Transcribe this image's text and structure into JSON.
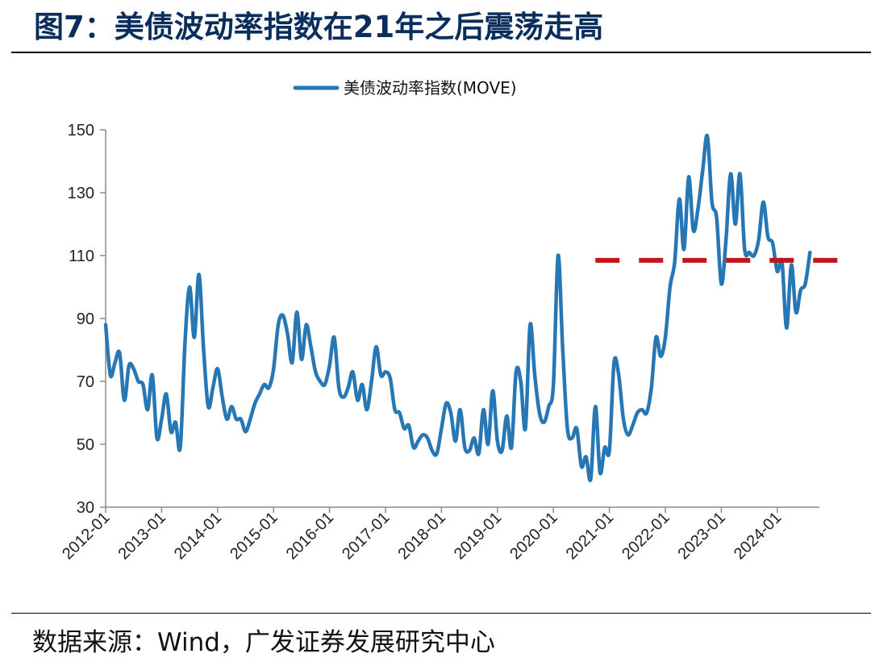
{
  "figure": {
    "title": "图7：美债波动率指数在21年之后震荡走高",
    "source": "数据来源：Wind，广发证券发展研究中心"
  },
  "chart_data": {
    "type": "line",
    "title": "",
    "xlabel": "",
    "ylabel": "",
    "ylim": [
      30,
      150
    ],
    "yticks": [
      30,
      50,
      70,
      90,
      110,
      130,
      150
    ],
    "xticks": [
      "2012-01",
      "2013-01",
      "2014-01",
      "2015-01",
      "2016-01",
      "2017-01",
      "2018-01",
      "2019-01",
      "2020-01",
      "2021-01",
      "2022-01",
      "2023-01",
      "2024-01"
    ],
    "legend_position": "top-center",
    "grid": false,
    "series": [
      {
        "name": "美债波动率指数(MOVE)",
        "color": "#2677b3",
        "points": [
          [
            "2012-01",
            88
          ],
          [
            "2012-02",
            72
          ],
          [
            "2012-03",
            76
          ],
          [
            "2012-04",
            79
          ],
          [
            "2012-05",
            64
          ],
          [
            "2012-06",
            75
          ],
          [
            "2012-07",
            74
          ],
          [
            "2012-08",
            70
          ],
          [
            "2012-09",
            69
          ],
          [
            "2012-10",
            61
          ],
          [
            "2012-11",
            72
          ],
          [
            "2012-12",
            52
          ],
          [
            "2013-01",
            58
          ],
          [
            "2013-02",
            66
          ],
          [
            "2013-03",
            54
          ],
          [
            "2013-04",
            57
          ],
          [
            "2013-05",
            49
          ],
          [
            "2013-06",
            82
          ],
          [
            "2013-07",
            100
          ],
          [
            "2013-08",
            84
          ],
          [
            "2013-09",
            104
          ],
          [
            "2013-10",
            80
          ],
          [
            "2013-11",
            62
          ],
          [
            "2013-12",
            68
          ],
          [
            "2014-01",
            74
          ],
          [
            "2014-02",
            65
          ],
          [
            "2014-03",
            58
          ],
          [
            "2014-04",
            62
          ],
          [
            "2014-05",
            58
          ],
          [
            "2014-06",
            58
          ],
          [
            "2014-07",
            54
          ],
          [
            "2014-08",
            58
          ],
          [
            "2014-09",
            63
          ],
          [
            "2014-10",
            66
          ],
          [
            "2014-11",
            69
          ],
          [
            "2014-12",
            68
          ],
          [
            "2015-01",
            74
          ],
          [
            "2015-02",
            88
          ],
          [
            "2015-03",
            91
          ],
          [
            "2015-04",
            85
          ],
          [
            "2015-05",
            76
          ],
          [
            "2015-06",
            92
          ],
          [
            "2015-07",
            77
          ],
          [
            "2015-08",
            88
          ],
          [
            "2015-09",
            81
          ],
          [
            "2015-10",
            73
          ],
          [
            "2015-11",
            70
          ],
          [
            "2015-12",
            69
          ],
          [
            "2016-01",
            75
          ],
          [
            "2016-02",
            84
          ],
          [
            "2016-03",
            68
          ],
          [
            "2016-04",
            65
          ],
          [
            "2016-05",
            68
          ],
          [
            "2016-06",
            73
          ],
          [
            "2016-07",
            64
          ],
          [
            "2016-08",
            69
          ],
          [
            "2016-09",
            61
          ],
          [
            "2016-10",
            70
          ],
          [
            "2016-11",
            81
          ],
          [
            "2016-12",
            72
          ],
          [
            "2017-01",
            73
          ],
          [
            "2017-02",
            71
          ],
          [
            "2017-03",
            61
          ],
          [
            "2017-04",
            60
          ],
          [
            "2017-05",
            55
          ],
          [
            "2017-06",
            56
          ],
          [
            "2017-07",
            49
          ],
          [
            "2017-08",
            51
          ],
          [
            "2017-09",
            53
          ],
          [
            "2017-10",
            52
          ],
          [
            "2017-11",
            48
          ],
          [
            "2017-12",
            47
          ],
          [
            "2018-01",
            55
          ],
          [
            "2018-02",
            63
          ],
          [
            "2018-03",
            60
          ],
          [
            "2018-04",
            51
          ],
          [
            "2018-05",
            61
          ],
          [
            "2018-06",
            49
          ],
          [
            "2018-07",
            48
          ],
          [
            "2018-08",
            52
          ],
          [
            "2018-09",
            47
          ],
          [
            "2018-10",
            61
          ],
          [
            "2018-11",
            50
          ],
          [
            "2018-12",
            67
          ],
          [
            "2019-01",
            51
          ],
          [
            "2019-02",
            48
          ],
          [
            "2019-03",
            59
          ],
          [
            "2019-04",
            49
          ],
          [
            "2019-05",
            73
          ],
          [
            "2019-06",
            70
          ],
          [
            "2019-07",
            55
          ],
          [
            "2019-08",
            88
          ],
          [
            "2019-09",
            72
          ],
          [
            "2019-10",
            60
          ],
          [
            "2019-11",
            57
          ],
          [
            "2019-12",
            62
          ],
          [
            "2020-01",
            69
          ],
          [
            "2020-02",
            110
          ],
          [
            "2020-03",
            80
          ],
          [
            "2020-04",
            55
          ],
          [
            "2020-05",
            52
          ],
          [
            "2020-06",
            55
          ],
          [
            "2020-07",
            43
          ],
          [
            "2020-08",
            46
          ],
          [
            "2020-09",
            39
          ],
          [
            "2020-10",
            62
          ],
          [
            "2020-11",
            41
          ],
          [
            "2020-12",
            49
          ],
          [
            "2021-01",
            48
          ],
          [
            "2021-02",
            76
          ],
          [
            "2021-03",
            72
          ],
          [
            "2021-04",
            58
          ],
          [
            "2021-05",
            53
          ],
          [
            "2021-06",
            56
          ],
          [
            "2021-07",
            60
          ],
          [
            "2021-08",
            61
          ],
          [
            "2021-09",
            60
          ],
          [
            "2021-10",
            68
          ],
          [
            "2021-11",
            84
          ],
          [
            "2021-12",
            78
          ],
          [
            "2022-01",
            84
          ],
          [
            "2022-02",
            100
          ],
          [
            "2022-03",
            108
          ],
          [
            "2022-04",
            128
          ],
          [
            "2022-05",
            112
          ],
          [
            "2022-06",
            135
          ],
          [
            "2022-07",
            118
          ],
          [
            "2022-08",
            125
          ],
          [
            "2022-09",
            137
          ],
          [
            "2022-10",
            148
          ],
          [
            "2022-11",
            127
          ],
          [
            "2022-12",
            122
          ],
          [
            "2023-01",
            101
          ],
          [
            "2023-02",
            115
          ],
          [
            "2023-03",
            136
          ],
          [
            "2023-04",
            120
          ],
          [
            "2023-05",
            136
          ],
          [
            "2023-06",
            112
          ],
          [
            "2023-07",
            111
          ],
          [
            "2023-08",
            110
          ],
          [
            "2023-09",
            115
          ],
          [
            "2023-10",
            127
          ],
          [
            "2023-11",
            116
          ],
          [
            "2023-12",
            114
          ],
          [
            "2024-01",
            105
          ],
          [
            "2024-02",
            108
          ],
          [
            "2024-03",
            87
          ],
          [
            "2024-04",
            107
          ],
          [
            "2024-05",
            92
          ],
          [
            "2024-06",
            99
          ],
          [
            "2024-07",
            101
          ],
          [
            "2024-08",
            111
          ]
        ]
      }
    ],
    "reference_line": {
      "value": 108.5,
      "from": "2020-10",
      "to": "2024-10",
      "color": "#c0161c",
      "style": "dashed"
    }
  }
}
